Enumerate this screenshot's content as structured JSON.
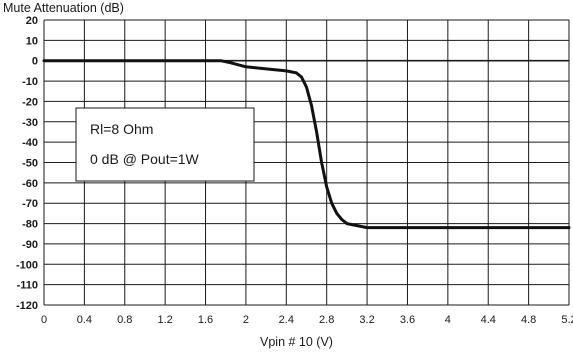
{
  "chart_data": {
    "type": "line",
    "title": "Mute Attenuation  (dB)",
    "xlabel": "Vpin # 10 (V)",
    "ylabel": "",
    "xlim": [
      0,
      5.2
    ],
    "ylim": [
      -120,
      20
    ],
    "x_ticks": [
      "0",
      "0.4",
      "0.8",
      "1.2",
      "1.6",
      "2",
      "2.4",
      "2.8",
      "3.2",
      "3.6",
      "4",
      "4.4",
      "4.8",
      "5.2"
    ],
    "y_ticks": [
      "20",
      "10",
      "0",
      "-10",
      "-20",
      "-30",
      "-40",
      "-50",
      "-60",
      "-70",
      "-80",
      "-90",
      "-100",
      "-110",
      "-120"
    ],
    "grid": true,
    "annotation": [
      "Rl=8 Ohm",
      "0 dB @ Pout=1W"
    ],
    "series": [
      {
        "x": [
          0,
          0.4,
          0.8,
          1.2,
          1.6,
          1.75,
          1.85,
          2.0,
          2.2,
          2.4,
          2.5,
          2.55,
          2.6,
          2.65,
          2.7,
          2.75,
          2.8,
          2.85,
          2.9,
          2.95,
          3.0,
          3.1,
          3.2,
          3.4,
          3.6,
          4.0,
          4.4,
          4.8,
          5.2
        ],
        "y": [
          0,
          0,
          0,
          0,
          0,
          0,
          -1,
          -3,
          -4,
          -5,
          -6,
          -8,
          -13,
          -22,
          -35,
          -50,
          -62,
          -70,
          -75,
          -78,
          -80,
          -81,
          -82,
          -82,
          -82,
          -82,
          -82,
          -82,
          -82
        ]
      }
    ]
  }
}
